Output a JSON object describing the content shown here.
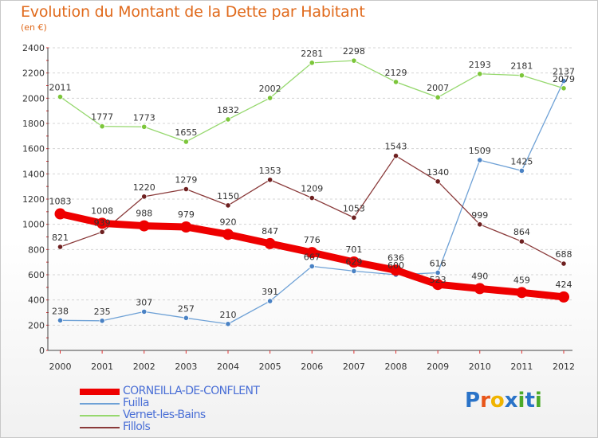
{
  "title": "Evolution du Montant de la Dette par Habitant",
  "subtitle": "(en €)",
  "logo": {
    "text": "Proxiti",
    "letter_colors": [
      "#2a73c8",
      "#e8561a",
      "#f0b400",
      "#2a73c8",
      "#4caa2a",
      "#2a73c8",
      "#4caa2a"
    ]
  },
  "chart_data": {
    "type": "line",
    "x": [
      "2000",
      "2001",
      "2002",
      "2003",
      "2004",
      "2005",
      "2006",
      "2007",
      "2008",
      "2009",
      "2010",
      "2011",
      "2012"
    ],
    "ylim": [
      0,
      2400
    ],
    "yticks": [
      "0",
      "200",
      "400",
      "600",
      "800",
      "1000",
      "1200",
      "1400",
      "1600",
      "1800",
      "2000",
      "2200",
      "2400"
    ],
    "grid": "horizontal dashed",
    "legend_position": "bottom-left",
    "series": [
      {
        "name": "CORNEILLA-DE-CONFLENT",
        "color": "#ee0000",
        "point_color": "#ee0000",
        "emphasis": true,
        "values": [
          1083,
          1008,
          988,
          979,
          920,
          847,
          776,
          701,
          636,
          523,
          490,
          459,
          424
        ],
        "labels": [
          "1083",
          "1008",
          "988",
          "979",
          "920",
          "847",
          "776",
          "701",
          "636",
          "",
          "490",
          "459",
          "424"
        ]
      },
      {
        "name": "Fuilla",
        "color": "#6ea1d6",
        "point_color": "#4a82c4",
        "values": [
          238,
          235,
          307,
          257,
          210,
          391,
          667,
          629,
          600,
          616,
          1509,
          1425,
          2137
        ],
        "labels": [
          "238",
          "235",
          "307",
          "257",
          "210",
          "391",
          "667",
          "629",
          "600",
          "616",
          "1509",
          "1425",
          "2137"
        ]
      },
      {
        "name": "Vernet-les-Bains",
        "color": "#96d86e",
        "point_color": "#7cc63a",
        "values": [
          2011,
          1777,
          1773,
          1655,
          1832,
          2002,
          2281,
          2298,
          2129,
          2007,
          2193,
          2181,
          2079
        ],
        "labels": [
          "2011",
          "1777",
          "1773",
          "1655",
          "1832",
          "2002",
          "2281",
          "2298",
          "2129",
          "2007",
          "2193",
          "2181",
          "2079"
        ]
      },
      {
        "name": "Fillols",
        "color": "#8a3a3a",
        "point_color": "#6e2020",
        "values": [
          821,
          939,
          1220,
          1279,
          1150,
          1353,
          1209,
          1053,
          1543,
          1340,
          999,
          864,
          688
        ],
        "labels": [
          "821",
          "939",
          "1220",
          "1279",
          "1150",
          "1353",
          "1209",
          "1053",
          "1543",
          "1340",
          "999",
          "864",
          "688"
        ]
      }
    ],
    "extra_labels": [
      "523"
    ]
  }
}
